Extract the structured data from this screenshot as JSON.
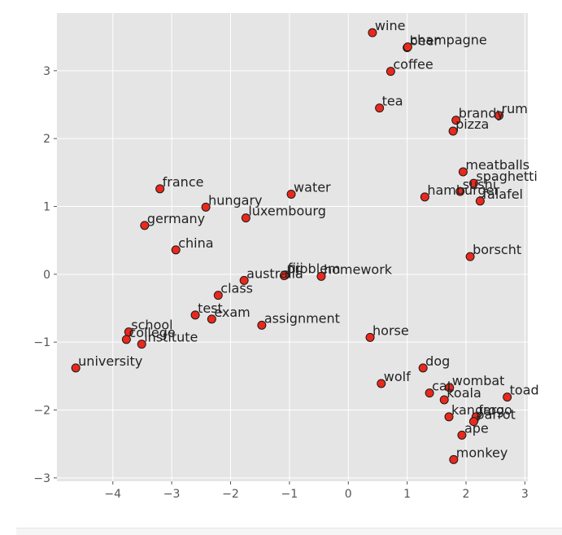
{
  "chart_data": {
    "type": "scatter",
    "title": "",
    "xlabel": "",
    "ylabel": "",
    "xlim": [
      -4.95,
      3.05
    ],
    "ylim": [
      -3.05,
      3.85
    ],
    "xticks": [
      -4,
      -3,
      -2,
      -1,
      0,
      1,
      2,
      3
    ],
    "yticks": [
      -3,
      -2,
      -1,
      0,
      1,
      2,
      3
    ],
    "xtick_labels": [
      "−4",
      "−3",
      "−2",
      "−1",
      "0",
      "1",
      "2",
      "3"
    ],
    "ytick_labels": [
      "−3",
      "−2",
      "−1",
      "0",
      "1",
      "2",
      "3"
    ],
    "grid": true,
    "style": "ggplot",
    "colors": {
      "background": "#e5e5e5",
      "grid": "#ffffff",
      "point_fill": "#e8291c",
      "point_edge": "#1a1a1a",
      "text": "#222222",
      "tick_text": "#555555"
    },
    "points": [
      {
        "label": "wine",
        "x": 0.41,
        "y": 3.56
      },
      {
        "label": "beer",
        "x": 1.0,
        "y": 3.34
      },
      {
        "label": "champagne",
        "x": 1.01,
        "y": 3.35
      },
      {
        "label": "coffee",
        "x": 0.72,
        "y": 2.99
      },
      {
        "label": "tea",
        "x": 0.53,
        "y": 2.45
      },
      {
        "label": "brandy",
        "x": 1.83,
        "y": 2.27
      },
      {
        "label": "rum",
        "x": 2.56,
        "y": 2.34
      },
      {
        "label": "pizza",
        "x": 1.78,
        "y": 2.11
      },
      {
        "label": "meatballs",
        "x": 1.95,
        "y": 1.51
      },
      {
        "label": "spaghetti",
        "x": 2.13,
        "y": 1.34
      },
      {
        "label": "sushi",
        "x": 1.9,
        "y": 1.22
      },
      {
        "label": "hamburger",
        "x": 1.3,
        "y": 1.14
      },
      {
        "label": "falafel",
        "x": 2.24,
        "y": 1.08
      },
      {
        "label": "borscht",
        "x": 2.07,
        "y": 0.26
      },
      {
        "label": "france",
        "x": -3.2,
        "y": 1.26
      },
      {
        "label": "water",
        "x": -0.97,
        "y": 1.18
      },
      {
        "label": "hungary",
        "x": -2.42,
        "y": 0.99
      },
      {
        "label": "luxembourg",
        "x": -1.74,
        "y": 0.83
      },
      {
        "label": "germany",
        "x": -3.46,
        "y": 0.72
      },
      {
        "label": "china",
        "x": -2.93,
        "y": 0.36
      },
      {
        "label": "fiji",
        "x": -1.07,
        "y": -0.01
      },
      {
        "label": "problem",
        "x": -1.09,
        "y": -0.02
      },
      {
        "label": "homework",
        "x": -0.46,
        "y": -0.03
      },
      {
        "label": "australia",
        "x": -1.77,
        "y": -0.09
      },
      {
        "label": "class",
        "x": -2.21,
        "y": -0.31
      },
      {
        "label": "test",
        "x": -2.6,
        "y": -0.6
      },
      {
        "label": "exam",
        "x": -2.32,
        "y": -0.66
      },
      {
        "label": "assignment",
        "x": -1.47,
        "y": -0.75
      },
      {
        "label": "school",
        "x": -3.73,
        "y": -0.85
      },
      {
        "label": "college",
        "x": -3.77,
        "y": -0.96
      },
      {
        "label": "institute",
        "x": -3.51,
        "y": -1.03
      },
      {
        "label": "university",
        "x": -4.63,
        "y": -1.38
      },
      {
        "label": "horse",
        "x": 0.37,
        "y": -0.93
      },
      {
        "label": "dog",
        "x": 1.27,
        "y": -1.38
      },
      {
        "label": "wolf",
        "x": 0.56,
        "y": -1.61
      },
      {
        "label": "wombat",
        "x": 1.72,
        "y": -1.67
      },
      {
        "label": "cat",
        "x": 1.38,
        "y": -1.75
      },
      {
        "label": "koala",
        "x": 1.63,
        "y": -1.85
      },
      {
        "label": "toad",
        "x": 2.7,
        "y": -1.81
      },
      {
        "label": "kangaroo",
        "x": 1.71,
        "y": -2.1
      },
      {
        "label": "frog",
        "x": 2.17,
        "y": -2.1
      },
      {
        "label": "parrot",
        "x": 2.13,
        "y": -2.17
      },
      {
        "label": "ape",
        "x": 1.93,
        "y": -2.37
      },
      {
        "label": "monkey",
        "x": 1.79,
        "y": -2.73
      }
    ]
  }
}
